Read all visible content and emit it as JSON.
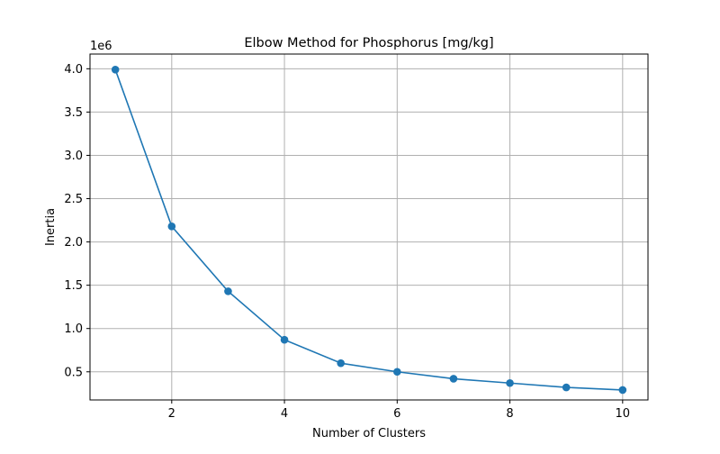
{
  "chart_data": {
    "type": "line",
    "title": "Elbow Method for Phosphorus [mg/kg]",
    "xlabel": "Number of Clusters",
    "ylabel": "Inertia",
    "y_offset_label": "1e6",
    "x": [
      1,
      2,
      3,
      4,
      5,
      6,
      7,
      8,
      9,
      10
    ],
    "series": [
      {
        "values": [
          3990000,
          2180000,
          1430000,
          870000,
          600000,
          500000,
          420000,
          370000,
          320000,
          290000
        ]
      }
    ],
    "xlim": [
      0.55,
      10.45
    ],
    "ylim": [
      0.175,
      4.17
    ],
    "y_scale": 1000000,
    "xticks": [
      2,
      4,
      6,
      8,
      10
    ],
    "xtick_labels": [
      "2",
      "4",
      "6",
      "8",
      "10"
    ],
    "yticks": [
      0.5,
      1.0,
      1.5,
      2.0,
      2.5,
      3.0,
      3.5,
      4.0
    ],
    "ytick_labels": [
      "0.5",
      "1.0",
      "1.5",
      "2.0",
      "2.5",
      "3.0",
      "3.5",
      "4.0"
    ],
    "grid": true,
    "marker": "circle",
    "line_color": "#1f77b4",
    "grid_color": "#b0b0b0"
  }
}
